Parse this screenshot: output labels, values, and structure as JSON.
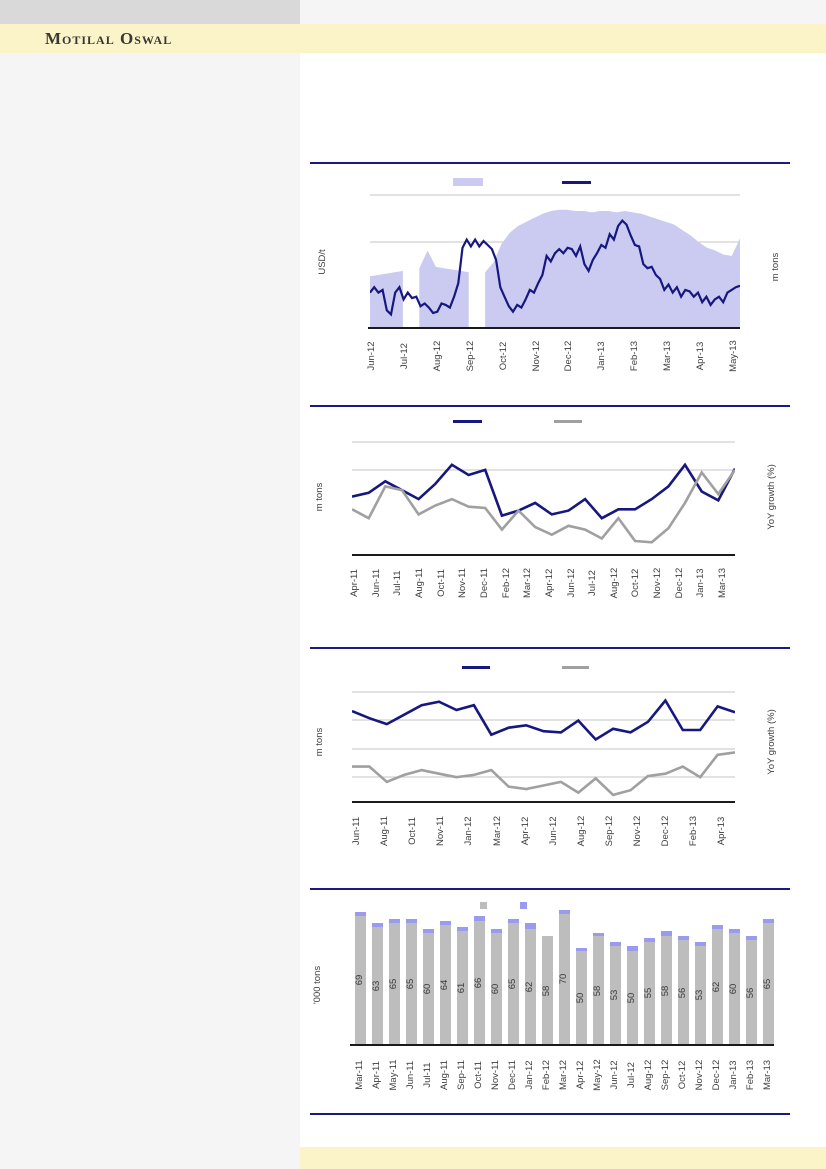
{
  "page": {
    "brand_logo": "Motilal Oswal",
    "colors": {
      "banner_yellow": "#fbf4c9",
      "left_panel_gray": "#f5f5f5",
      "top_bar_gray": "#d9d9d9",
      "navy": "#171780",
      "series_gray": "#a0a0a0",
      "area_fill": "#cbcbf1",
      "bar_gray": "#bdbdbd",
      "bar_cap": "#9a9af0",
      "gridline": "#c6c6c6",
      "axis_black": "#1a1a1a",
      "divider_navy": "#1a1a80"
    }
  },
  "chart_data": [
    {
      "id": "price-and-volume",
      "type": "area",
      "title": "",
      "left_axis_title": "USD/t",
      "right_axis_title": "m tons",
      "value_unit": "percent_of_plot_height",
      "x_tick_labels": [
        "Jun-12",
        "Jul-12",
        "Aug-12",
        "Sep-12",
        "Oct-12",
        "Nov-12",
        "Dec-12",
        "Jan-13",
        "Feb-13",
        "Mar-13",
        "Apr-13",
        "May-13"
      ],
      "legend": [
        {
          "label": "",
          "swatch": "filled-area",
          "color": "#cbcbf1"
        },
        {
          "label": "",
          "swatch": "line",
          "color": "#171780"
        }
      ],
      "series": [
        {
          "name": "volume-area",
          "style": "area",
          "color": "#cbcbf1",
          "values": [
            38,
            39,
            40,
            41,
            42,
            null,
            44,
            57,
            45,
            44,
            43,
            42,
            41,
            null,
            41,
            48,
            62,
            70,
            75,
            78,
            81,
            84,
            86,
            87,
            87,
            86,
            86,
            85,
            86,
            86,
            85,
            86,
            85,
            84,
            82,
            80,
            78,
            76,
            72,
            68,
            63,
            59,
            57,
            54,
            53,
            66
          ]
        },
        {
          "name": "price-line",
          "style": "line",
          "color": "#171780",
          "values": [
            26,
            30,
            26,
            28,
            13,
            10,
            26,
            30,
            21,
            26,
            22,
            23,
            16,
            18,
            15,
            11,
            12,
            18,
            17,
            15,
            23,
            33,
            59,
            65,
            60,
            65,
            60,
            64,
            61,
            58,
            50,
            30,
            23,
            16,
            12,
            17,
            15,
            21,
            28,
            26,
            33,
            39,
            53,
            49,
            55,
            58,
            55,
            59,
            58,
            53,
            60,
            47,
            42,
            50,
            55,
            61,
            59,
            69,
            65,
            75,
            79,
            76,
            68,
            61,
            60,
            47,
            44,
            45,
            39,
            36,
            28,
            32,
            26,
            30,
            23,
            28,
            27,
            23,
            26,
            19,
            23,
            17,
            21,
            23,
            19,
            26,
            28,
            30,
            31
          ]
        }
      ]
    },
    {
      "id": "monthly-trend-with-yoy-growth-1",
      "type": "line",
      "title": "",
      "left_axis_title": "m tons",
      "right_axis_title": "YoY growth (%)",
      "value_unit": "percent_of_plot_height",
      "months": [
        "Apr-11",
        "May-11",
        "Jun-11",
        "Jul-11",
        "Aug-11",
        "Sep-11",
        "Oct-11",
        "Nov-11",
        "Dec-11",
        "Jan-12",
        "Feb-12",
        "Mar-12",
        "Apr-12",
        "May-12",
        "Jun-12",
        "Jul-12",
        "Aug-12",
        "Sep-12",
        "Oct-12",
        "Nov-12",
        "Dec-12",
        "Jan-13",
        "Feb-13",
        "Mar-13"
      ],
      "x_tick_labels": [
        "Apr-11",
        "Jun-11",
        "Jul-11",
        "Aug-11",
        "Oct-11",
        "Nov-11",
        "Dec-11",
        "Feb-12",
        "Mar-12",
        "Apr-12",
        "Jun-12",
        "Jul-12",
        "Aug-12",
        "Oct-12",
        "Nov-12",
        "Dec-12",
        "Jan-13",
        "Mar-13"
      ],
      "legend": [
        {
          "label": "",
          "swatch": "line",
          "color": "#171780"
        },
        {
          "label": "",
          "swatch": "line",
          "color": "#a0a0a0"
        }
      ],
      "series": [
        {
          "name": "navy-line",
          "style": "line",
          "color": "#171780",
          "values": [
            46,
            49,
            58,
            51,
            44,
            56,
            71,
            63,
            67,
            31,
            35,
            41,
            32,
            35,
            44,
            29,
            36,
            36,
            44,
            54,
            71,
            50,
            43,
            68
          ]
        },
        {
          "name": "gray-line",
          "style": "line",
          "color": "#a0a0a0",
          "values": [
            36,
            29,
            54,
            51,
            32,
            39,
            44,
            38,
            37,
            20,
            35,
            22,
            16,
            23,
            20,
            13,
            29,
            11,
            10,
            21,
            41,
            65,
            48,
            67
          ]
        }
      ]
    },
    {
      "id": "monthly-trend-with-yoy-growth-2",
      "type": "line",
      "title": "",
      "left_axis_title": "m tons",
      "right_axis_title": "YoY growth (%)",
      "value_unit": "percent_of_plot_height",
      "months": [
        "Jun-11",
        "Jul-11",
        "Aug-11",
        "Sep-11",
        "Oct-11",
        "Nov-11",
        "Dec-11",
        "Jan-12",
        "Feb-12",
        "Mar-12",
        "Apr-12",
        "May-12",
        "Jun-12",
        "Jul-12",
        "Aug-12",
        "Sep-12",
        "Oct-12",
        "Nov-12",
        "Dec-12",
        "Jan-13",
        "Feb-13",
        "Mar-13",
        "Apr-13"
      ],
      "x_tick_labels": [
        "Jun-11",
        "Aug-11",
        "Oct-11",
        "Nov-11",
        "Jan-12",
        "Mar-12",
        "Apr-12",
        "Jun-12",
        "Aug-12",
        "Sep-12",
        "Nov-12",
        "Dec-12",
        "Feb-13",
        "Apr-13"
      ],
      "legend": [
        {
          "label": "",
          "swatch": "line",
          "color": "#171780"
        },
        {
          "label": "",
          "swatch": "line",
          "color": "#a0a0a0"
        }
      ],
      "series": [
        {
          "name": "navy-line",
          "style": "line",
          "color": "#171780",
          "values": [
            77,
            71,
            66,
            74,
            82,
            85,
            78,
            82,
            57,
            63,
            65,
            60,
            59,
            69,
            53,
            62,
            59,
            68,
            86,
            61,
            61,
            81,
            76
          ]
        },
        {
          "name": "gray-line",
          "style": "line",
          "color": "#a0a0a0",
          "values": [
            30,
            30,
            17,
            23,
            27,
            24,
            21,
            23,
            27,
            13,
            11,
            14,
            17,
            8,
            20,
            6,
            10,
            22,
            24,
            30,
            21,
            40,
            42
          ]
        }
      ]
    },
    {
      "id": "monthly-volumes-bars",
      "type": "bar",
      "title": "",
      "left_axis_title": "'000 tons",
      "ylim": [
        0,
        80
      ],
      "categories": [
        "Mar-11",
        "Apr-11",
        "May-11",
        "Jun-11",
        "Jul-11",
        "Aug-11",
        "Sep-11",
        "Oct-11",
        "Nov-11",
        "Dec-11",
        "Jan-12",
        "Feb-12",
        "Mar-12",
        "Apr-12",
        "May-12",
        "Jun-12",
        "Jul-12",
        "Aug-12",
        "Sep-12",
        "Oct-12",
        "Nov-12",
        "Dec-12",
        "Jan-13",
        "Feb-13",
        "Mar-13"
      ],
      "bar_value_labels": [
        "69",
        "63",
        "65",
        "65",
        "60",
        "64",
        "61",
        "66",
        "60",
        "65",
        "62",
        "58",
        "70",
        "50",
        "58",
        "53",
        "50",
        "55",
        "58",
        "56",
        "53",
        "62",
        "60",
        "56",
        "65"
      ],
      "legend": [
        {
          "label": "",
          "swatch": "square",
          "color": "#bdbdbd"
        },
        {
          "label": "",
          "swatch": "square",
          "color": "#9a9af0"
        }
      ],
      "series": [
        {
          "name": "gray-segment",
          "style": "bar",
          "color": "#bdbdbd",
          "values": [
            69,
            63,
            65,
            65,
            60,
            64,
            61,
            66,
            60,
            65,
            62,
            58,
            70,
            50,
            58,
            53,
            50,
            55,
            58,
            56,
            53,
            62,
            60,
            56,
            65
          ]
        },
        {
          "name": "cap-segment",
          "style": "bar",
          "color": "#9a9af0",
          "values": [
            2,
            2,
            2,
            2,
            2,
            2,
            2,
            3,
            2,
            2,
            3,
            0,
            2,
            2,
            2,
            2,
            3,
            2,
            3,
            2,
            2,
            2,
            2,
            2,
            2
          ]
        }
      ]
    }
  ]
}
